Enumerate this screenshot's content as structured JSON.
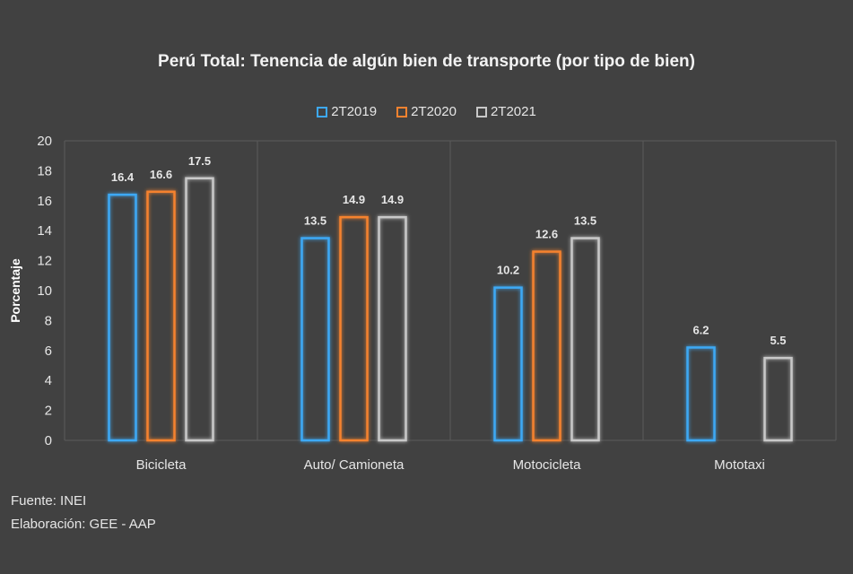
{
  "chart_data": {
    "type": "bar",
    "title": "Perú Total: Tenencia de algún bien de transporte (por tipo de bien)",
    "ylabel": "Porcentaje",
    "xlabel": "",
    "ylim": [
      0,
      20
    ],
    "yticks": [
      "0",
      "2",
      "4",
      "6",
      "8",
      "10",
      "12",
      "14",
      "16",
      "18",
      "20"
    ],
    "grid": "vertical-between-categories",
    "legend_position": "top",
    "categories": [
      "Bicicleta",
      "Auto/ Camioneta",
      "Motocicleta",
      "Mototaxi"
    ],
    "series": [
      {
        "name": "2T2019",
        "color": "#3da9f5",
        "values": [
          16.4,
          13.5,
          10.2,
          6.2
        ]
      },
      {
        "name": "2T2020",
        "color": "#f5822f",
        "values": [
          16.6,
          14.9,
          12.6,
          null
        ]
      },
      {
        "name": "2T2021",
        "color": "#c8c8c8",
        "values": [
          17.5,
          14.9,
          13.5,
          5.5
        ]
      }
    ]
  },
  "footer": {
    "source": "Fuente: INEI",
    "credit": "Elaboración: GEE - AAP"
  },
  "colors": {
    "background": "#414141",
    "gridline": "#5a5a5a"
  }
}
